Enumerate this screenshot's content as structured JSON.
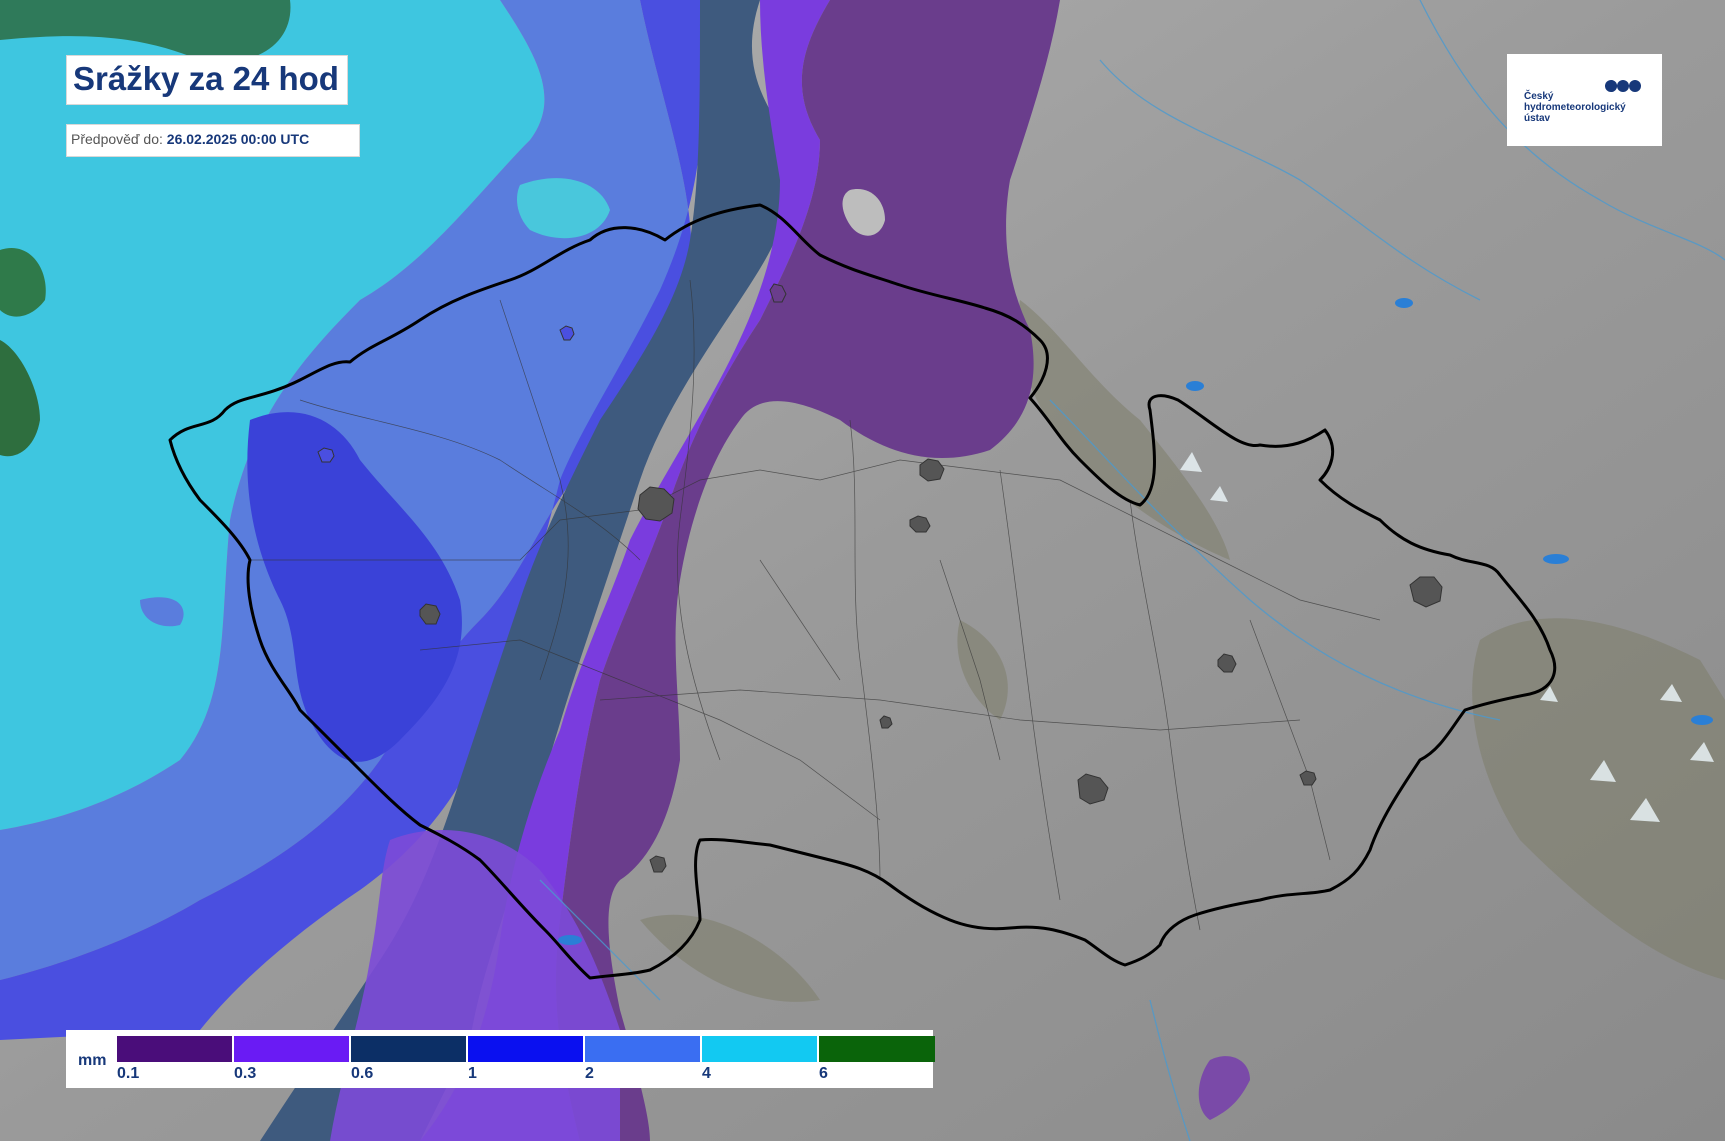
{
  "header": {
    "title": "Srážky za 24 hod",
    "forecast_label": "Předpověď do:",
    "forecast_value": "26.02.2025 00:00 UTC"
  },
  "logo": {
    "line1": "Český",
    "line2": "hydrometeorologický",
    "line3": "ústav"
  },
  "legend": {
    "unit": "mm",
    "items": [
      {
        "label": "0.1",
        "color": "#4a0d7a"
      },
      {
        "label": "0.3",
        "color": "#6a1bf4"
      },
      {
        "label": "0.6",
        "color": "#0c2f66"
      },
      {
        "label": "1",
        "color": "#0a10f0"
      },
      {
        "label": "2",
        "color": "#3a6ef2"
      },
      {
        "label": "4",
        "color": "#12c9f2"
      },
      {
        "label": "6",
        "color": "#0a640a"
      }
    ]
  },
  "map": {
    "colors": {
      "terrain": "#9a9a9a",
      "border": "#000000",
      "cities": "#555555",
      "water": "#2a7fd6"
    }
  }
}
